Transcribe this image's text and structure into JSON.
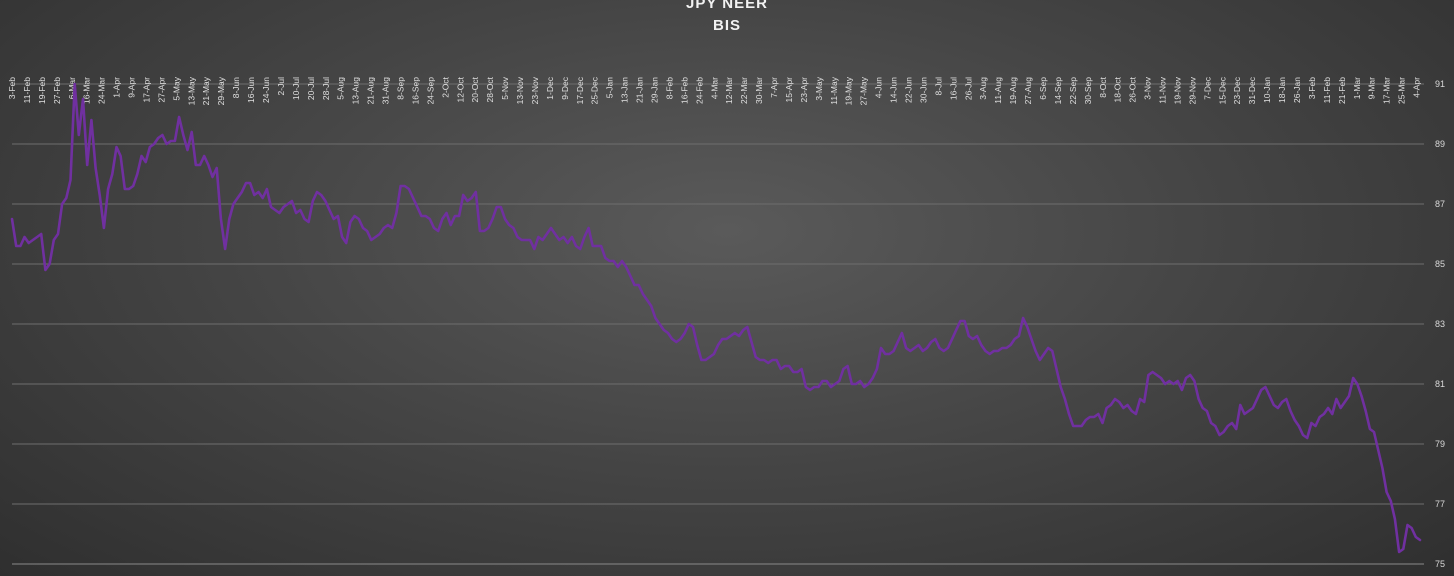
{
  "chart_data": {
    "type": "line",
    "title": "JPY NEER",
    "subtitle": "BIS",
    "xlabel": "",
    "ylabel": "",
    "ylim": [
      75,
      91
    ],
    "yticks": [
      75,
      77,
      79,
      81,
      83,
      85,
      87,
      89,
      91
    ],
    "y_axis_position": "right",
    "grid": true,
    "legend": "none",
    "line_color": "#7030a0",
    "x_tick_labels": [
      "3-Feb",
      "11-Feb",
      "19-Feb",
      "27-Feb",
      "6-Mar",
      "16-Mar",
      "24-Mar",
      "1-Apr",
      "9-Apr",
      "17-Apr",
      "27-Apr",
      "5-May",
      "13-May",
      "21-May",
      "29-May",
      "8-Jun",
      "16-Jun",
      "24-Jun",
      "2-Jul",
      "10-Jul",
      "20-Jul",
      "28-Jul",
      "5-Aug",
      "13-Aug",
      "21-Aug",
      "31-Aug",
      "8-Sep",
      "16-Sep",
      "24-Sep",
      "2-Oct",
      "12-Oct",
      "20-Oct",
      "28-Oct",
      "5-Nov",
      "13-Nov",
      "23-Nov",
      "1-Dec",
      "9-Dec",
      "17-Dec",
      "25-Dec",
      "5-Jan",
      "13-Jan",
      "21-Jan",
      "29-Jan",
      "8-Feb",
      "16-Feb",
      "24-Feb",
      "4-Mar",
      "12-Mar",
      "22-Mar",
      "30-Mar",
      "7-Apr",
      "15-Apr",
      "23-Apr",
      "3-May",
      "11-May",
      "19-May",
      "27-May",
      "4-Jun",
      "14-Jun",
      "22-Jun",
      "30-Jun",
      "8-Jul",
      "16-Jul",
      "26-Jul",
      "3-Aug",
      "11-Aug",
      "19-Aug",
      "27-Aug",
      "6-Sep",
      "14-Sep",
      "22-Sep",
      "30-Sep",
      "8-Oct",
      "18-Oct",
      "26-Oct",
      "3-Nov",
      "11-Nov",
      "19-Nov",
      "29-Nov",
      "7-Dec",
      "15-Dec",
      "23-Dec",
      "31-Dec",
      "10-Jan",
      "18-Jan",
      "26-Jan",
      "3-Feb",
      "11-Feb",
      "21-Feb",
      "1-Mar",
      "9-Mar",
      "17-Mar",
      "25-Mar",
      "4-Apr"
    ],
    "series": [
      {
        "values": [
          86.5,
          85.6,
          85.6,
          85.9,
          85.7,
          85.8,
          85.9,
          86.0,
          84.8,
          85.0,
          85.8,
          86.0,
          87.0,
          87.2,
          87.8,
          91.0,
          89.3,
          90.5,
          88.3,
          89.8,
          88.2,
          87.3,
          86.2,
          87.5,
          88.0,
          88.9,
          88.6,
          87.5,
          87.5,
          87.6,
          88.0,
          88.6,
          88.4,
          88.9,
          89.0,
          89.2,
          89.3,
          89.0,
          89.1,
          89.1,
          89.9,
          89.3,
          88.8,
          89.4,
          88.3,
          88.3,
          88.6,
          88.3,
          87.9,
          88.2,
          86.5,
          85.5,
          86.5,
          87.0,
          87.2,
          87.4,
          87.7,
          87.7,
          87.3,
          87.4,
          87.2,
          87.5,
          86.9,
          86.8,
          86.7,
          86.9,
          87.0,
          87.1,
          86.7,
          86.8,
          86.5,
          86.4,
          87.1,
          87.4,
          87.3,
          87.1,
          86.8,
          86.5,
          86.6,
          85.9,
          85.7,
          86.4,
          86.6,
          86.5,
          86.2,
          86.1,
          85.8,
          85.9,
          86.0,
          86.2,
          86.3,
          86.2,
          86.7,
          87.6,
          87.6,
          87.5,
          87.2,
          86.9,
          86.6,
          86.6,
          86.5,
          86.2,
          86.1,
          86.5,
          86.7,
          86.3,
          86.6,
          86.6,
          87.3,
          87.1,
          87.2,
          87.4,
          86.1,
          86.1,
          86.2,
          86.5,
          86.9,
          86.9,
          86.5,
          86.3,
          86.2,
          85.9,
          85.8,
          85.8,
          85.8,
          85.5,
          85.9,
          85.8,
          86.0,
          86.2,
          86.0,
          85.8,
          85.9,
          85.7,
          85.9,
          85.6,
          85.5,
          85.9,
          86.2,
          85.6,
          85.6,
          85.6,
          85.2,
          85.1,
          85.1,
          84.9,
          85.1,
          84.9,
          84.6,
          84.3,
          84.3,
          84.0,
          83.8,
          83.6,
          83.2,
          83.0,
          82.8,
          82.7,
          82.5,
          82.4,
          82.5,
          82.7,
          83.0,
          82.9,
          82.3,
          81.8,
          81.8,
          81.9,
          82.0,
          82.3,
          82.5,
          82.5,
          82.6,
          82.7,
          82.6,
          82.8,
          82.9,
          82.4,
          81.9,
          81.8,
          81.8,
          81.7,
          81.8,
          81.8,
          81.5,
          81.6,
          81.6,
          81.4,
          81.4,
          81.5,
          80.9,
          80.8,
          80.9,
          80.9,
          81.1,
          81.1,
          80.9,
          81.0,
          81.1,
          81.5,
          81.6,
          81.0,
          81.0,
          81.1,
          80.9,
          81.0,
          81.2,
          81.5,
          82.2,
          82.0,
          82.0,
          82.1,
          82.4,
          82.7,
          82.2,
          82.1,
          82.2,
          82.3,
          82.1,
          82.2,
          82.4,
          82.5,
          82.2,
          82.1,
          82.2,
          82.5,
          82.8,
          83.1,
          83.1,
          82.6,
          82.5,
          82.6,
          82.3,
          82.1,
          82.0,
          82.1,
          82.1,
          82.2,
          82.2,
          82.3,
          82.5,
          82.6,
          83.2,
          82.9,
          82.5,
          82.1,
          81.8,
          82.0,
          82.2,
          82.1,
          81.5,
          80.9,
          80.5,
          80.0,
          79.6,
          79.6,
          79.6,
          79.8,
          79.9,
          79.9,
          80.0,
          79.7,
          80.2,
          80.3,
          80.5,
          80.4,
          80.2,
          80.3,
          80.1,
          80.0,
          80.5,
          80.4,
          81.3,
          81.4,
          81.3,
          81.2,
          81.0,
          81.1,
          81.0,
          81.1,
          80.8,
          81.2,
          81.3,
          81.1,
          80.5,
          80.2,
          80.1,
          79.7,
          79.6,
          79.3,
          79.4,
          79.6,
          79.7,
          79.5,
          80.3,
          80.0,
          80.1,
          80.2,
          80.5,
          80.8,
          80.9,
          80.6,
          80.3,
          80.2,
          80.4,
          80.5,
          80.1,
          79.8,
          79.6,
          79.3,
          79.2,
          79.7,
          79.6,
          79.9,
          80.0,
          80.2,
          80.0,
          80.5,
          80.2,
          80.4,
          80.6,
          81.2,
          81.0,
          80.6,
          80.1,
          79.5,
          79.4,
          78.8,
          78.2,
          77.4,
          77.1,
          76.5,
          75.4,
          75.5,
          76.3,
          76.2,
          75.9,
          75.8
        ]
      }
    ]
  }
}
